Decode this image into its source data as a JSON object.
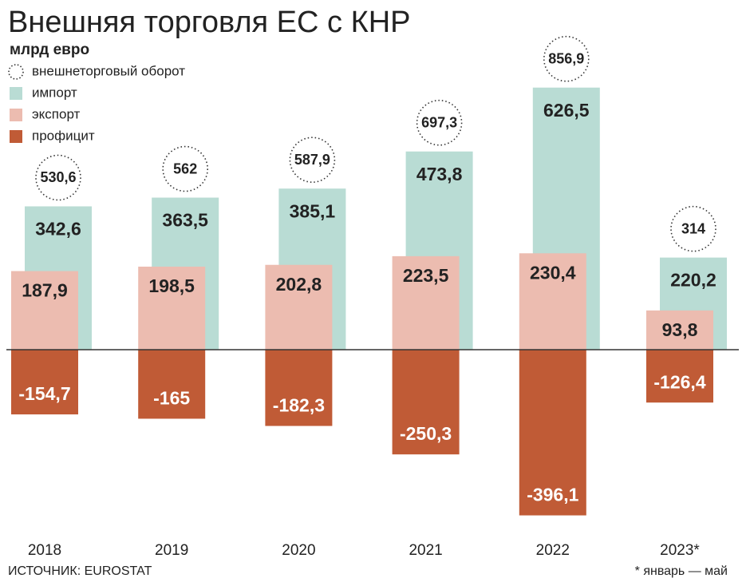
{
  "chart_data": {
    "type": "bar",
    "title": "Внешняя торговля ЕС с КНР",
    "subtitle": "млрд евро",
    "categories": [
      "2018",
      "2019",
      "2020",
      "2021",
      "2022",
      "2023*"
    ],
    "series": [
      {
        "name": "внешнеторговый оборот",
        "values": [
          530.6,
          562,
          587.9,
          697.3,
          856.9,
          314
        ],
        "value_labels": [
          "530,6",
          "562",
          "587,9",
          "697,3",
          "856,9",
          "314"
        ]
      },
      {
        "name": "импорт",
        "color": "#b9dcd4",
        "values": [
          342.6,
          363.5,
          385.1,
          473.8,
          626.5,
          220.2
        ],
        "value_labels": [
          "342,6",
          "363,5",
          "385,1",
          "473,8",
          "626,5",
          "220,2"
        ]
      },
      {
        "name": "экспорт",
        "color": "#ecbcb0",
        "values": [
          187.9,
          198.5,
          202.8,
          223.5,
          230.4,
          93.8
        ],
        "value_labels": [
          "187,9",
          "198,5",
          "202,8",
          "223,5",
          "230,4",
          "93,8"
        ]
      },
      {
        "name": "профицит",
        "color": "#c05b36",
        "values": [
          -154.7,
          -165,
          -182.3,
          -250.3,
          -396.1,
          -126.4
        ],
        "value_labels": [
          "-154,7",
          "-165",
          "-182,3",
          "-250,3",
          "-396,1",
          "-126,4"
        ]
      }
    ],
    "source": "ИСТОЧНИК: EUROSTAT",
    "note": "* январь — май"
  }
}
